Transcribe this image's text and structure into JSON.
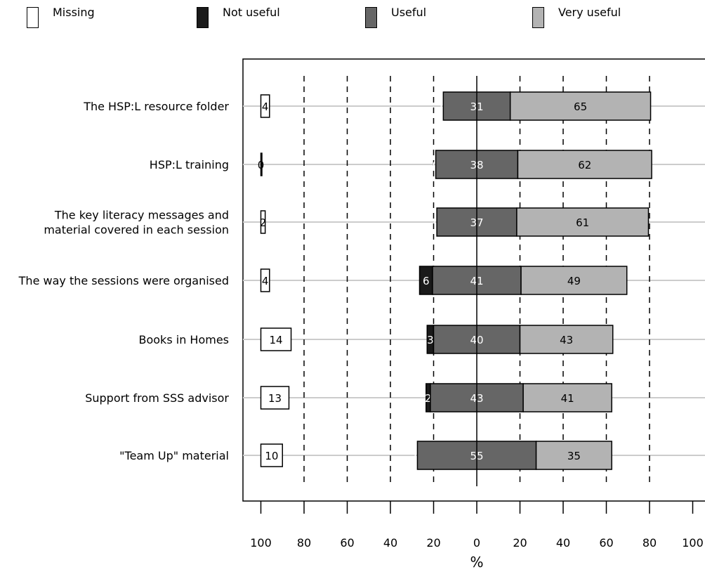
{
  "legend": [
    {
      "label": "Missing",
      "color": "#ffffff"
    },
    {
      "label": "Not useful",
      "color": "#1a1a1a"
    },
    {
      "label": "Useful",
      "color": "#666666"
    },
    {
      "label": "Very useful",
      "color": "#b3b3b3"
    }
  ],
  "chart_data": {
    "type": "bar",
    "orientation": "horizontal diverging stacked, with separate missing column",
    "xlabel": "%",
    "ticks": [
      100,
      80,
      60,
      40,
      20,
      0,
      20,
      40,
      60,
      80,
      100
    ],
    "xlim": [
      -100,
      100
    ],
    "grid": "dashed vertical",
    "legend_position": "top",
    "categories": [
      "The HSP:L resource folder",
      "HSP:L training",
      "The key literacy messages and material covered in each session",
      "The way the sessions were organised",
      "Books in Homes",
      "Support from SSS advisor",
      "\"Team Up\" material"
    ],
    "category_lines": [
      [
        "The HSP:L resource folder"
      ],
      [
        "HSP:L training"
      ],
      [
        "The key literacy messages and",
        "material covered in each session"
      ],
      [
        "The way the sessions were organised"
      ],
      [
        "Books in Homes"
      ],
      [
        "Support from SSS advisor"
      ],
      [
        "\"Team Up\" material"
      ]
    ],
    "series": [
      {
        "name": "Missing",
        "values": [
          4,
          0,
          2,
          4,
          14,
          13,
          10
        ]
      },
      {
        "name": "Not useful",
        "values": [
          0,
          0,
          0,
          6,
          3,
          2,
          0
        ]
      },
      {
        "name": "Useful",
        "values": [
          31,
          38,
          37,
          41,
          40,
          43,
          55
        ]
      },
      {
        "name": "Very useful",
        "values": [
          65,
          62,
          61,
          49,
          43,
          41,
          35
        ]
      }
    ]
  }
}
